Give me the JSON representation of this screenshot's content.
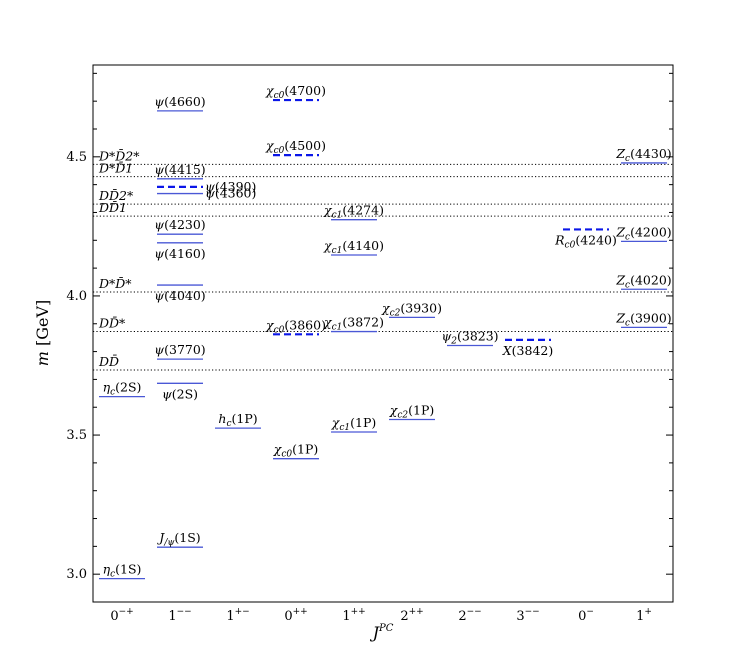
{
  "chart_data": {
    "type": "scatter",
    "xlabel": "J^PC",
    "ylabel": "m [GeV]",
    "ylim": [
      2.9,
      4.83
    ],
    "y_ticks": [
      "3.0",
      "3.5",
      "4.0",
      "4.5"
    ],
    "y_tick_values": [
      3.0,
      3.5,
      4.0,
      4.5
    ],
    "categories": [
      "0-+",
      "1--",
      "1+-",
      "0++",
      "1++",
      "2++",
      "2--",
      "3--",
      "0-",
      "1+"
    ],
    "category_labels": [
      {
        "base": "0",
        "sup": "−+"
      },
      {
        "base": "1",
        "sup": "−−"
      },
      {
        "base": "1",
        "sup": "+−"
      },
      {
        "base": "0",
        "sup": "++"
      },
      {
        "base": "1",
        "sup": "++"
      },
      {
        "base": "2",
        "sup": "++"
      },
      {
        "base": "2",
        "sup": "−−"
      },
      {
        "base": "3",
        "sup": "−−"
      },
      {
        "base": "0",
        "sup": "−"
      },
      {
        "base": "1",
        "sup": "+"
      }
    ],
    "thresholds": [
      {
        "label": "D*D̄2*",
        "value": 4.473
      },
      {
        "label": "D*D̄1",
        "value": 4.429
      },
      {
        "label": "DD̄2*",
        "value": 4.33
      },
      {
        "label": "DD̄1",
        "value": 4.287
      },
      {
        "label": "D*D̄*",
        "value": 4.014
      },
      {
        "label": "DD̄*",
        "value": 3.872
      },
      {
        "label": "DD̄",
        "value": 3.734
      }
    ],
    "states": [
      {
        "label": "ηc(1S)",
        "category": "0-+",
        "mass": 2.984,
        "style": "solid",
        "label_pos": "above"
      },
      {
        "label": "ηc(2S)",
        "category": "0-+",
        "mass": 3.638,
        "style": "solid",
        "label_pos": "above"
      },
      {
        "label": "J/ψ(1S)",
        "category": "1--",
        "mass": 3.097,
        "style": "solid",
        "label_pos": "above"
      },
      {
        "label": "ψ(2S)",
        "category": "1--",
        "mass": 3.686,
        "style": "solid",
        "label_pos": "below"
      },
      {
        "label": "ψ(3770)",
        "category": "1--",
        "mass": 3.773,
        "style": "solid",
        "label_pos": "above"
      },
      {
        "label": "ψ(4040)",
        "category": "1--",
        "mass": 4.039,
        "style": "solid",
        "label_pos": "below"
      },
      {
        "label": "ψ(4160)",
        "category": "1--",
        "mass": 4.191,
        "style": "solid",
        "label_pos": "below"
      },
      {
        "label": "ψ(4230)",
        "category": "1--",
        "mass": 4.222,
        "style": "solid",
        "label_pos": "above"
      },
      {
        "label": "ψ(4360)",
        "category": "1--",
        "mass": 4.368,
        "style": "solid",
        "label_pos": "right"
      },
      {
        "label": "ψ(4390)",
        "category": "1--",
        "mass": 4.392,
        "style": "dashed",
        "label_pos": "right"
      },
      {
        "label": "ψ(4415)",
        "category": "1--",
        "mass": 4.421,
        "style": "solid",
        "label_pos": "above"
      },
      {
        "label": "ψ(4660)",
        "category": "1--",
        "mass": 4.665,
        "style": "solid",
        "label_pos": "above"
      },
      {
        "label": "hc(1P)",
        "category": "1+-",
        "mass": 3.525,
        "style": "solid",
        "label_pos": "above"
      },
      {
        "label": "χc0(1P)",
        "category": "0++",
        "mass": 3.415,
        "style": "solid",
        "label_pos": "above"
      },
      {
        "label": "χc0(3860)",
        "category": "0++",
        "mass": 3.862,
        "style": "dashed",
        "label_pos": "above"
      },
      {
        "label": "χc0(4500)",
        "category": "0++",
        "mass": 4.506,
        "style": "dashed",
        "label_pos": "above"
      },
      {
        "label": "χc0(4700)",
        "category": "0++",
        "mass": 4.704,
        "style": "dashed",
        "label_pos": "above"
      },
      {
        "label": "χc1(1P)",
        "category": "1++",
        "mass": 3.511,
        "style": "solid",
        "label_pos": "above"
      },
      {
        "label": "χc1(3872)",
        "category": "1++",
        "mass": 3.872,
        "style": "solid",
        "label_pos": "above"
      },
      {
        "label": "χc1(4140)",
        "category": "1++",
        "mass": 4.147,
        "style": "solid",
        "label_pos": "above"
      },
      {
        "label": "χc1(4274)",
        "category": "1++",
        "mass": 4.274,
        "style": "solid",
        "label_pos": "above"
      },
      {
        "label": "χc2(1P)",
        "category": "2++",
        "mass": 3.556,
        "style": "solid",
        "label_pos": "above"
      },
      {
        "label": "χc2(3930)",
        "category": "2++",
        "mass": 3.923,
        "style": "solid",
        "label_pos": "above"
      },
      {
        "label": "ψ2(3823)",
        "category": "2--",
        "mass": 3.822,
        "style": "solid",
        "label_pos": "above"
      },
      {
        "label": "X(3842)",
        "category": "3--",
        "mass": 3.842,
        "style": "dashed",
        "label_pos": "below"
      },
      {
        "label": "Rc0(4240)",
        "category": "0-",
        "mass": 4.239,
        "style": "dashed",
        "label_pos": "below"
      },
      {
        "label": "Zc(3900)",
        "category": "1+",
        "mass": 3.887,
        "style": "solid",
        "label_pos": "above"
      },
      {
        "label": "Zc(4020)",
        "category": "1+",
        "mass": 4.024,
        "style": "solid",
        "label_pos": "above"
      },
      {
        "label": "Zc(4200)",
        "category": "1+",
        "mass": 4.196,
        "style": "solid",
        "label_pos": "above"
      },
      {
        "label": "Zc(4430)",
        "category": "1+",
        "mass": 4.478,
        "style": "solid",
        "label_pos": "above"
      }
    ],
    "colors": {
      "level": "#4a58d6",
      "dashed": "#0b17e8",
      "threshold": "#000000"
    },
    "grid": false
  }
}
